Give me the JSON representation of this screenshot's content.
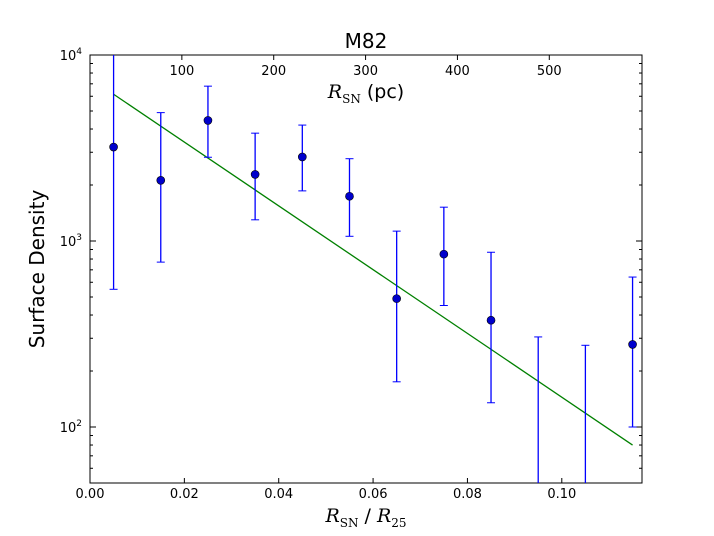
{
  "chart_data": {
    "type": "scatter",
    "title": "M82",
    "xlabel": "R_SN / R_25",
    "xlabel_parts": {
      "r": "R",
      "sn_sub": "SN",
      "slash": " / ",
      "r25": "R",
      "r25_sub": "25"
    },
    "top_xlabel_parts": {
      "r": "R",
      "sn_sub": "SN",
      "unit": " (pc)"
    },
    "ylabel": "Surface Density",
    "yscale": "log",
    "xlim": [
      0.0,
      0.117
    ],
    "ylim": [
      50,
      10000
    ],
    "x_ticks": [
      {
        "value": 0.0,
        "label": "0.00"
      },
      {
        "value": 0.02,
        "label": "0.02"
      },
      {
        "value": 0.04,
        "label": "0.04"
      },
      {
        "value": 0.06,
        "label": "0.06"
      },
      {
        "value": 0.08,
        "label": "0.08"
      },
      {
        "value": 0.1,
        "label": "0.10"
      }
    ],
    "top_ticks": [
      {
        "value": 0.01947,
        "label": "100"
      },
      {
        "value": 0.03894,
        "label": "200"
      },
      {
        "value": 0.05841,
        "label": "300"
      },
      {
        "value": 0.07788,
        "label": "400"
      },
      {
        "value": 0.09735,
        "label": "500"
      }
    ],
    "y_ticks": [
      {
        "value": 100,
        "base": "10",
        "exp": "2"
      },
      {
        "value": 1000,
        "base": "10",
        "exp": "3"
      },
      {
        "value": 10000,
        "base": "10",
        "exp": "4"
      }
    ],
    "series": [
      {
        "name": "data",
        "color": "#0000cc",
        "errorbar_color": "#0000ff",
        "points": [
          {
            "x": 0.005,
            "y": 3200,
            "lo": 550,
            "hi": 10000
          },
          {
            "x": 0.015,
            "y": 2120,
            "lo": 770,
            "hi": 4900
          },
          {
            "x": 0.025,
            "y": 4450,
            "lo": 2820,
            "hi": 6800
          },
          {
            "x": 0.035,
            "y": 2280,
            "lo": 1300,
            "hi": 3800
          },
          {
            "x": 0.045,
            "y": 2830,
            "lo": 1860,
            "hi": 4200
          },
          {
            "x": 0.055,
            "y": 1740,
            "lo": 1060,
            "hi": 2770
          },
          {
            "x": 0.065,
            "y": 490,
            "lo": 175,
            "hi": 1130
          },
          {
            "x": 0.075,
            "y": 850,
            "lo": 450,
            "hi": 1520
          },
          {
            "x": 0.085,
            "y": 375,
            "lo": 135,
            "hi": 870
          },
          {
            "x": 0.095,
            "y": null,
            "lo": 50,
            "hi": 305
          },
          {
            "x": 0.105,
            "y": null,
            "lo": 50,
            "hi": 275
          },
          {
            "x": 0.115,
            "y": 278,
            "lo": 100,
            "hi": 640
          }
        ]
      },
      {
        "name": "fit",
        "type": "line",
        "color": "#008000",
        "x": [
          0.005,
          0.115
        ],
        "y": [
          6150,
          80
        ]
      }
    ]
  }
}
